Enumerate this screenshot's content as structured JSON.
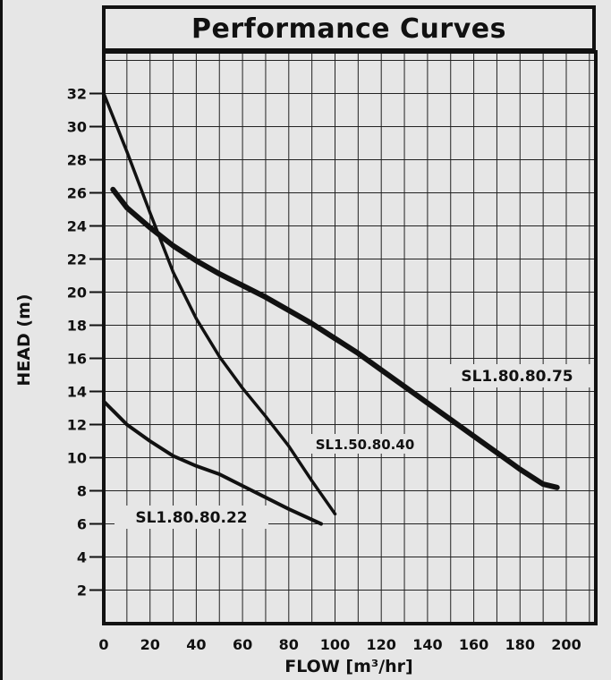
{
  "chart_data": {
    "type": "line",
    "title": "Performance Curves",
    "xlabel": "FLOW [m³/hr]",
    "ylabel": "HEAD (m)",
    "xlim": [
      0,
      215
    ],
    "ylim": [
      0,
      35
    ],
    "x_ticks": [
      "0",
      "20",
      "40",
      "60",
      "80",
      "100",
      "120",
      "140",
      "160",
      "180",
      "200"
    ],
    "y_ticks": [
      "2",
      "4",
      "6",
      "8",
      "10",
      "12",
      "14",
      "16",
      "18",
      "20",
      "22",
      "24",
      "26",
      "28",
      "30",
      "32"
    ],
    "grid": true,
    "legend": "none",
    "series": [
      {
        "name": "SL1.80.80.75",
        "x": [
          4,
          10,
          20,
          30,
          40,
          50,
          60,
          70,
          80,
          90,
          100,
          110,
          120,
          130,
          140,
          150,
          160,
          170,
          180,
          190,
          196
        ],
        "y": [
          26.2,
          25.1,
          23.9,
          22.8,
          21.9,
          21.1,
          20.4,
          19.7,
          18.9,
          18.1,
          17.2,
          16.3,
          15.3,
          14.3,
          13.3,
          12.3,
          11.3,
          10.3,
          9.3,
          8.4,
          8.2
        ]
      },
      {
        "name": "SL1.50.80.40",
        "x": [
          0,
          10,
          20,
          30,
          40,
          50,
          60,
          70,
          80,
          90,
          100
        ],
        "y": [
          32,
          28.5,
          24.8,
          21.2,
          18.4,
          16.1,
          14.2,
          12.5,
          10.7,
          8.6,
          6.6
        ]
      },
      {
        "name": "SL1.80.80.22",
        "x": [
          0,
          10,
          20,
          30,
          40,
          50,
          60,
          70,
          80,
          94
        ],
        "y": [
          13.4,
          12,
          11,
          10.1,
          9.5,
          9,
          8.3,
          7.6,
          6.9,
          6
        ]
      }
    ]
  }
}
